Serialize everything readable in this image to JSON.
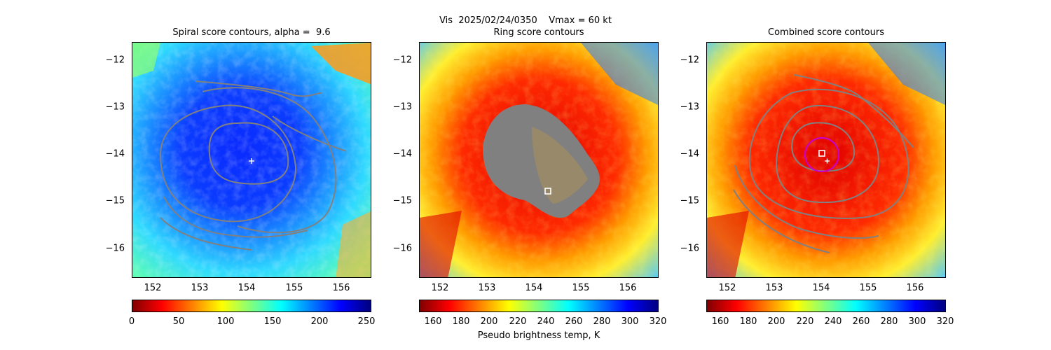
{
  "figure": {
    "title_line1": "Vis  2025/02/24/0350    Vmax = 60 kt",
    "colorbar_label": "Pseudo brightness temp, K"
  },
  "chart_data": [
    {
      "type": "heatmap",
      "title": "Spiral score contours, alpha =  9.6",
      "xlim": [
        151.6,
        156.7
      ],
      "ylim": [
        -16.65,
        -11.65
      ],
      "xticks": [
        "152",
        "153",
        "154",
        "155",
        "156"
      ],
      "yticks": [
        "-12",
        "-13",
        "-14",
        "-15",
        "-16"
      ],
      "colormap": "jet",
      "colorbar": {
        "range": [
          0,
          255
        ],
        "ticks": [
          "0",
          "50",
          "100",
          "150",
          "200",
          "250"
        ]
      },
      "center_marker": {
        "lon": 154.1,
        "lat": -14.12,
        "symbol": "+",
        "color": "#ffffff"
      }
    },
    {
      "type": "heatmap",
      "title": "Ring score contours",
      "xlim": [
        151.6,
        156.7
      ],
      "ylim": [
        -16.65,
        -11.65
      ],
      "xticks": [
        "152",
        "153",
        "154",
        "155",
        "156"
      ],
      "yticks": [
        "-12",
        "-13",
        "-14",
        "-15",
        "-16"
      ],
      "colormap": "jet_r",
      "colorbar": {
        "range": [
          150,
          320
        ],
        "ticks": [
          "160",
          "180",
          "200",
          "220",
          "240",
          "260",
          "280",
          "300",
          "320"
        ]
      },
      "center_marker": {
        "lon": 154.3,
        "lat": -14.78,
        "symbol": "square",
        "color": "#ffffff"
      }
    },
    {
      "type": "heatmap",
      "title": "Combined score contours",
      "xlim": [
        151.6,
        156.7
      ],
      "ylim": [
        -16.65,
        -11.65
      ],
      "xticks": [
        "152",
        "153",
        "154",
        "155",
        "156"
      ],
      "yticks": [
        "-12",
        "-13",
        "-14",
        "-15",
        "-16"
      ],
      "colormap": "jet_r",
      "colorbar": {
        "range": [
          150,
          320
        ],
        "ticks": [
          "160",
          "180",
          "200",
          "220",
          "240",
          "260",
          "280",
          "300",
          "320"
        ]
      },
      "center_markers": [
        {
          "lon": 153.97,
          "lat": -13.98,
          "symbol": "square",
          "color": "#ffffff"
        },
        {
          "lon": 154.12,
          "lat": -14.12,
          "symbol": "+",
          "color": "#ffffff"
        }
      ],
      "ring": {
        "lon": 154.05,
        "lat": -13.98,
        "radius_deg": 0.35,
        "color": "#c800c8"
      }
    }
  ],
  "colors": {
    "contour": "#808080",
    "ring": "#c800c8",
    "marker": "#ffffff",
    "mask": "#808080"
  }
}
